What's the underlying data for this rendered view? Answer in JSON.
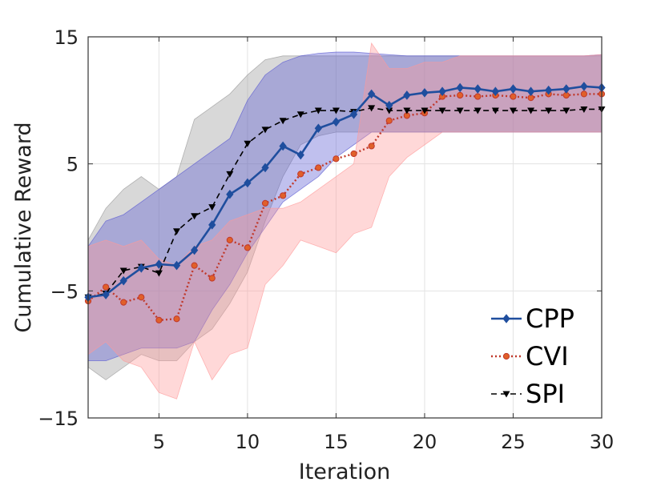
{
  "chart_data": {
    "type": "line",
    "title": "",
    "xlabel": "Iteration",
    "ylabel": "Cumulative Reward",
    "xlim": [
      1,
      30
    ],
    "ylim": [
      -15,
      15
    ],
    "xticks": [
      5,
      10,
      15,
      20,
      25,
      30
    ],
    "yticks": [
      -15,
      -5,
      5,
      15
    ],
    "ytick_labels": [
      "−15",
      "−5",
      "5",
      "15"
    ],
    "grid": true,
    "legend_position": "bottom-right",
    "x": [
      1,
      2,
      3,
      4,
      5,
      6,
      7,
      8,
      9,
      10,
      11,
      12,
      13,
      14,
      15,
      16,
      17,
      18,
      19,
      20,
      21,
      22,
      23,
      24,
      25,
      26,
      27,
      28,
      29,
      30
    ],
    "series": [
      {
        "name": "CPP",
        "color": "#1f4e9e",
        "fill": "#5a5ad2",
        "line": "solid",
        "marker": "diamond",
        "values": [
          -5.5,
          -5.3,
          -4.2,
          -3.2,
          -2.9,
          -3.0,
          -1.8,
          0.2,
          2.6,
          3.5,
          4.7,
          6.4,
          5.7,
          7.8,
          8.3,
          8.9,
          10.5,
          9.6,
          10.4,
          10.6,
          10.7,
          11.0,
          10.9,
          10.7,
          10.9,
          10.7,
          10.8,
          10.9,
          11.1,
          11.0
        ],
        "upper": [
          -1.5,
          0.5,
          1.0,
          2.0,
          3.0,
          4.0,
          5.0,
          6.0,
          7.0,
          10.0,
          12.0,
          13.0,
          13.5,
          13.7,
          13.8,
          13.8,
          13.7,
          13.6,
          13.5,
          13.5,
          13.5,
          13.5,
          13.5,
          13.5,
          13.5,
          13.5,
          13.5,
          13.5,
          13.5,
          13.6
        ],
        "lower": [
          -10.5,
          -10.5,
          -10.0,
          -9.5,
          -9.5,
          -9.5,
          -9.0,
          -6.5,
          -4.5,
          -2.0,
          0.0,
          2.0,
          3.0,
          4.0,
          5.5,
          6.5,
          7.5,
          7.5,
          7.5,
          7.5,
          7.5,
          7.5,
          7.5,
          7.5,
          7.5,
          7.5,
          7.5,
          7.5,
          7.5,
          7.5
        ]
      },
      {
        "name": "CVI",
        "color": "#c0392b",
        "fill": "#ff9999",
        "line": "dotted",
        "marker": "circle",
        "values": [
          -5.8,
          -4.7,
          -5.9,
          -5.5,
          -7.3,
          -7.2,
          -3.0,
          -4.0,
          -1.0,
          -1.6,
          1.9,
          2.5,
          4.2,
          4.7,
          5.4,
          5.8,
          6.4,
          8.4,
          8.8,
          9.0,
          10.3,
          10.4,
          10.3,
          10.4,
          10.3,
          10.2,
          10.5,
          10.4,
          10.5,
          10.5
        ],
        "upper": [
          -1.5,
          -1.0,
          -1.5,
          -1.0,
          -2.5,
          -3.0,
          -1.5,
          -1.0,
          0.5,
          1.0,
          1.5,
          1.5,
          2.0,
          3.0,
          4.0,
          5.0,
          14.5,
          12.5,
          12.5,
          13.0,
          13.0,
          13.5,
          13.5,
          13.5,
          13.5,
          13.5,
          13.5,
          13.5,
          13.5,
          13.6
        ],
        "lower": [
          -10.0,
          -9.0,
          -10.5,
          -11.0,
          -13.0,
          -13.5,
          -9.0,
          -12.0,
          -10.0,
          -9.5,
          -4.5,
          -3.0,
          -1.0,
          -1.5,
          -2.0,
          -0.5,
          0.0,
          4.0,
          5.5,
          6.5,
          7.5,
          7.5,
          7.5,
          7.5,
          7.5,
          7.5,
          7.5,
          7.5,
          7.5,
          7.5
        ]
      },
      {
        "name": "SPI",
        "color": "#000000",
        "fill": "#999999",
        "line": "dashed",
        "marker": "triangle-down",
        "values": [
          -5.5,
          -5.2,
          -3.4,
          -3.1,
          -3.6,
          -0.3,
          0.9,
          1.6,
          4.2,
          6.6,
          7.7,
          8.4,
          8.9,
          9.2,
          9.2,
          9.1,
          9.4,
          9.2,
          9.2,
          9.2,
          9.2,
          9.2,
          9.2,
          9.2,
          9.2,
          9.2,
          9.2,
          9.2,
          9.3,
          9.3
        ],
        "upper": [
          -1.0,
          1.5,
          3.0,
          4.0,
          3.0,
          4.0,
          8.5,
          9.5,
          10.5,
          12.0,
          13.2,
          13.5,
          13.5,
          13.5,
          13.5,
          13.5,
          13.5,
          13.5,
          13.5,
          13.5,
          13.5,
          13.5,
          13.5,
          13.5,
          13.5,
          13.5,
          13.5,
          13.5,
          13.5,
          13.5
        ],
        "lower": [
          -11.0,
          -12.0,
          -11.0,
          -10.0,
          -10.5,
          -10.5,
          -9.0,
          -8.0,
          -6.0,
          -3.5,
          0.5,
          4.0,
          6.5,
          7.2,
          7.5,
          7.5,
          7.5,
          7.5,
          7.5,
          7.5,
          7.5,
          7.5,
          7.5,
          7.5,
          7.5,
          7.5,
          7.5,
          7.5,
          7.5,
          7.5
        ]
      }
    ]
  }
}
